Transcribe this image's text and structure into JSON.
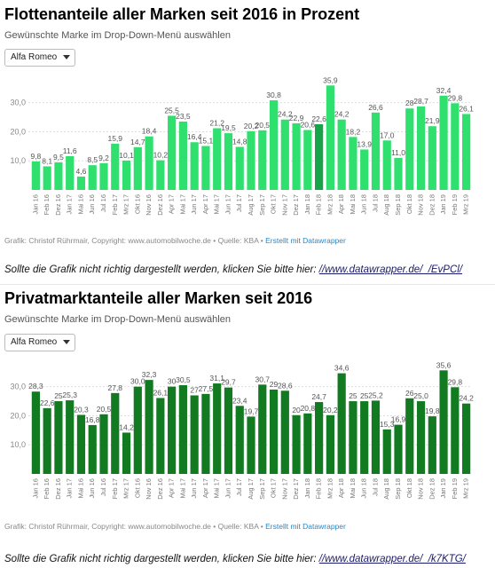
{
  "categories": [
    "Jan 16",
    "Feb 16",
    "Dez 16",
    "Jan 17",
    "Mai 16",
    "Jun 16",
    "Jul 16",
    "Feb 17",
    "Mrz 17",
    "Okt 16",
    "Nov 16",
    "Dez 16",
    "Apr 17",
    "Mai 17",
    "Jun 17",
    "Apr 17",
    "Mai 17",
    "Jun 17",
    "Jul 17",
    "Aug 17",
    "Sep 17",
    "Okt 17",
    "Nov 17",
    "Dez 17",
    "Jan 18",
    "Feb 18",
    "Mrz 18",
    "Apr 18",
    "Mai 18",
    "Jun 18",
    "Jul 18",
    "Aug 18",
    "Sep 18",
    "Okt 18",
    "Nov 18",
    "Dez 18",
    "Jan 19",
    "Feb 19",
    "Mrz 19"
  ],
  "charts": [
    {
      "title": "Flottenanteile aller Marken seit 2016 in Prozent",
      "subtitle": "Gewünschte Marke im Drop-Down-Menü auswählen",
      "select_value": "Alfa Romeo",
      "credit": "Grafik: Christof Rührmair, Copyright: www.automobilwoche.de • Quelle: KBA • ",
      "credit_link": "Erstellt mit Datawrapper",
      "note_text": "Sollte die Grafik nicht richtig dargestellt werden, klicken Sie bitte hier: ",
      "note_link": "//www.datawrapper.de/_/EvPCl/"
    },
    {
      "title": "Privatmarktanteile aller Marken seit 2016",
      "subtitle": "Gewünschte Marke im Drop-Down-Menü auswählen",
      "select_value": "Alfa Romeo",
      "credit": "Grafik: Christof Rührmair, Copyright: www.automobilwoche.de • Quelle: KBA • ",
      "credit_link": "Erstellt mit Datawrapper",
      "note_text": "Sollte die Grafik nicht richtig dargestellt werden, klicken Sie bitte hier: ",
      "note_link": "//www.datawrapper.de/_/k7KTG/"
    }
  ],
  "chart_data": [
    {
      "type": "bar",
      "title": "Flottenanteile aller Marken seit 2016 in Prozent",
      "categories": [
        "Jan 16",
        "Feb 16",
        "Dez 16",
        "Jan 17",
        "Mai 16",
        "Jun 16",
        "Jul 16",
        "Feb 17",
        "Mrz 17",
        "Okt 16",
        "Nov 16",
        "Dez 16",
        "Apr 17",
        "Mai 17",
        "Jun 17",
        "Apr 17",
        "Mai 17",
        "Jun 17",
        "Jul 17",
        "Aug 17",
        "Sep 17",
        "Okt 17",
        "Nov 17",
        "Dez 17",
        "Jan 18",
        "Feb 18",
        "Mrz 18",
        "Apr 18",
        "Mai 18",
        "Jun 18",
        "Jul 18",
        "Aug 18",
        "Sep 18",
        "Okt 18",
        "Nov 18",
        "Dez 18",
        "Jan 19",
        "Feb 19",
        "Mrz 19"
      ],
      "values": [
        9.8,
        8.1,
        9.5,
        11.6,
        4.6,
        8.5,
        9.2,
        15.9,
        10.1,
        14.7,
        18.4,
        10.2,
        25.5,
        23.5,
        16.4,
        15.1,
        21.2,
        19.5,
        14.8,
        20.2,
        20.5,
        30.8,
        24.2,
        22.9,
        20.6,
        22.6,
        35.9,
        24.2,
        18.2,
        13.9,
        26.6,
        17.0,
        11.0,
        28.0,
        28.7,
        21.9,
        32.4,
        29.8,
        26.1
      ],
      "labels": [
        "9,8",
        "8,1",
        "9,5",
        "11,6",
        "4,6",
        "8,5",
        "9,2",
        "15,9",
        "10,1",
        "14,7",
        "18,4",
        "10,2",
        "25,5",
        "23,5",
        "16,4",
        "15,1",
        "21,2",
        "19,5",
        "14,8",
        "20,2",
        "20,5",
        "30,8",
        "24,2",
        "22,9",
        "20,6",
        "22,6",
        "35,9",
        "24,2",
        "18,2",
        "13,9",
        "26,6",
        "17,0",
        "11,0",
        "28",
        "28,7",
        "21,9",
        "32,4",
        "29,8",
        "26,1"
      ],
      "ylim": [
        0,
        36
      ],
      "yticks": [
        10,
        20,
        30
      ],
      "ytick_labels": [
        "10,0",
        "20,0",
        "30,0"
      ],
      "grid": true,
      "color": "#2fe06e",
      "highlight_color": "#16a34a",
      "highlight_index": 25
    },
    {
      "type": "bar",
      "title": "Privatmarktanteile aller Marken seit 2016",
      "categories": [
        "Jan 16",
        "Feb 16",
        "Dez 16",
        "Jan 17",
        "Mai 16",
        "Jun 16",
        "Jul 16",
        "Feb 17",
        "Mrz 17",
        "Okt 16",
        "Nov 16",
        "Dez 16",
        "Apr 17",
        "Mai 17",
        "Jun 17",
        "Apr 17",
        "Mai 17",
        "Jun 17",
        "Jul 17",
        "Aug 17",
        "Sep 17",
        "Okt 17",
        "Nov 17",
        "Dez 17",
        "Jan 18",
        "Feb 18",
        "Mrz 18",
        "Apr 18",
        "Mai 18",
        "Jun 18",
        "Jul 18",
        "Aug 18",
        "Sep 18",
        "Okt 18",
        "Nov 18",
        "Dez 18",
        "Jan 19",
        "Feb 19",
        "Mrz 19"
      ],
      "values": [
        28.3,
        22.6,
        25.0,
        25.3,
        20.3,
        16.8,
        20.5,
        27.8,
        14.2,
        30.0,
        32.3,
        26.1,
        30.0,
        30.5,
        27.0,
        27.5,
        31.1,
        29.7,
        23.4,
        19.7,
        30.7,
        29.0,
        28.6,
        20.2,
        20.8,
        24.7,
        20.2,
        34.6,
        25.0,
        25.0,
        25.2,
        15.3,
        16.9,
        26.0,
        25.0,
        19.8,
        35.6,
        29.8,
        24.2
      ],
      "labels": [
        "28,3",
        "22,6",
        "25",
        "25,3",
        "20,3",
        "16,8",
        "20,5",
        "27,8",
        "14,2",
        "30,0",
        "32,3",
        "26,1",
        "30",
        "30,5",
        "27",
        "27,5",
        "31,1",
        "29,7",
        "23,4",
        "19,7",
        "30,7",
        "29",
        "28,6",
        "20",
        "20,8",
        "24,7",
        "20,2",
        "34,6",
        "25",
        "25",
        "25,2",
        "15,3",
        "16,9",
        "26",
        "25,0",
        "19,8",
        "35,6",
        "29,8",
        "24,2"
      ],
      "ylim": [
        0,
        36
      ],
      "yticks": [
        10,
        20,
        30
      ],
      "ytick_labels": [
        "10,0",
        "20,0",
        "30,0"
      ],
      "grid": true,
      "color": "#127a20"
    }
  ]
}
